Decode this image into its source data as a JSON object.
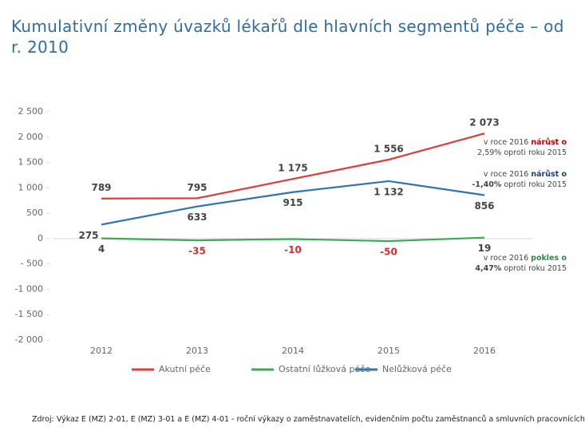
{
  "chart_data": {
    "type": "line",
    "title": "Kumulativní změny úvazků lékařů dle hlavních segmentů péče – od r. 2010",
    "categories": [
      "2012",
      "2013",
      "2014",
      "2015",
      "2016"
    ],
    "series": [
      {
        "name": "Akutní péče",
        "color": "#e03c3c",
        "values": [
          789,
          795,
          1175,
          1556,
          2073
        ],
        "value_labels": [
          "789",
          "795",
          "1 175",
          "1 556",
          "2 073"
        ]
      },
      {
        "name": "Ostatní lůžková péče",
        "color": "#3aaa5a",
        "values": [
          4,
          -35,
          -10,
          -50,
          19
        ],
        "value_labels": [
          "4",
          "-35",
          "-10",
          "-50",
          "19"
        ]
      },
      {
        "name": "Nelůžková péče",
        "color": "#2f74b5",
        "values": [
          275,
          633,
          915,
          1132,
          856
        ],
        "value_labels": [
          "275",
          "633",
          "915",
          "1 132",
          "856"
        ]
      }
    ],
    "ylim": [
      -2000,
      2500
    ],
    "yticks": [
      {
        "value": -2000,
        "label": "-2 000"
      },
      {
        "value": -1500,
        "label": "-1 500"
      },
      {
        "value": -1000,
        "label": "-1 000"
      },
      {
        "value": -500,
        "label": "- 500"
      },
      0,
      500,
      {
        "value": 1000,
        "label": "1 000"
      },
      {
        "value": 1500,
        "label": "1 500"
      },
      {
        "value": 2000,
        "label": "2 000"
      },
      {
        "value": 2500,
        "label": "2 500"
      }
    ],
    "grid": false,
    "legend": "bottom",
    "annotations": [
      {
        "color": "#c00000",
        "parts": [
          "v roce 2016",
          "nárůst o",
          "2,59%",
          "oproti roku 2015"
        ]
      },
      {
        "color": "#1f3f7a",
        "parts": [
          "v roce 2016",
          "nárůst o",
          "-1,40%",
          "oproti roku 2015"
        ]
      },
      {
        "color": "#2e8b3a",
        "parts": [
          "v roce 2016",
          "pokles o",
          "4,47%",
          "oproti roku 2015"
        ]
      }
    ],
    "source": "Zdroj: Výkaz E (MZ) 2-01, E (MZ) 3-01 a E (MZ) 4-01 - roční výkazy o zaměstnavatelích, evidenčním počtu zaměstnanců a smluvních pracovnících"
  }
}
